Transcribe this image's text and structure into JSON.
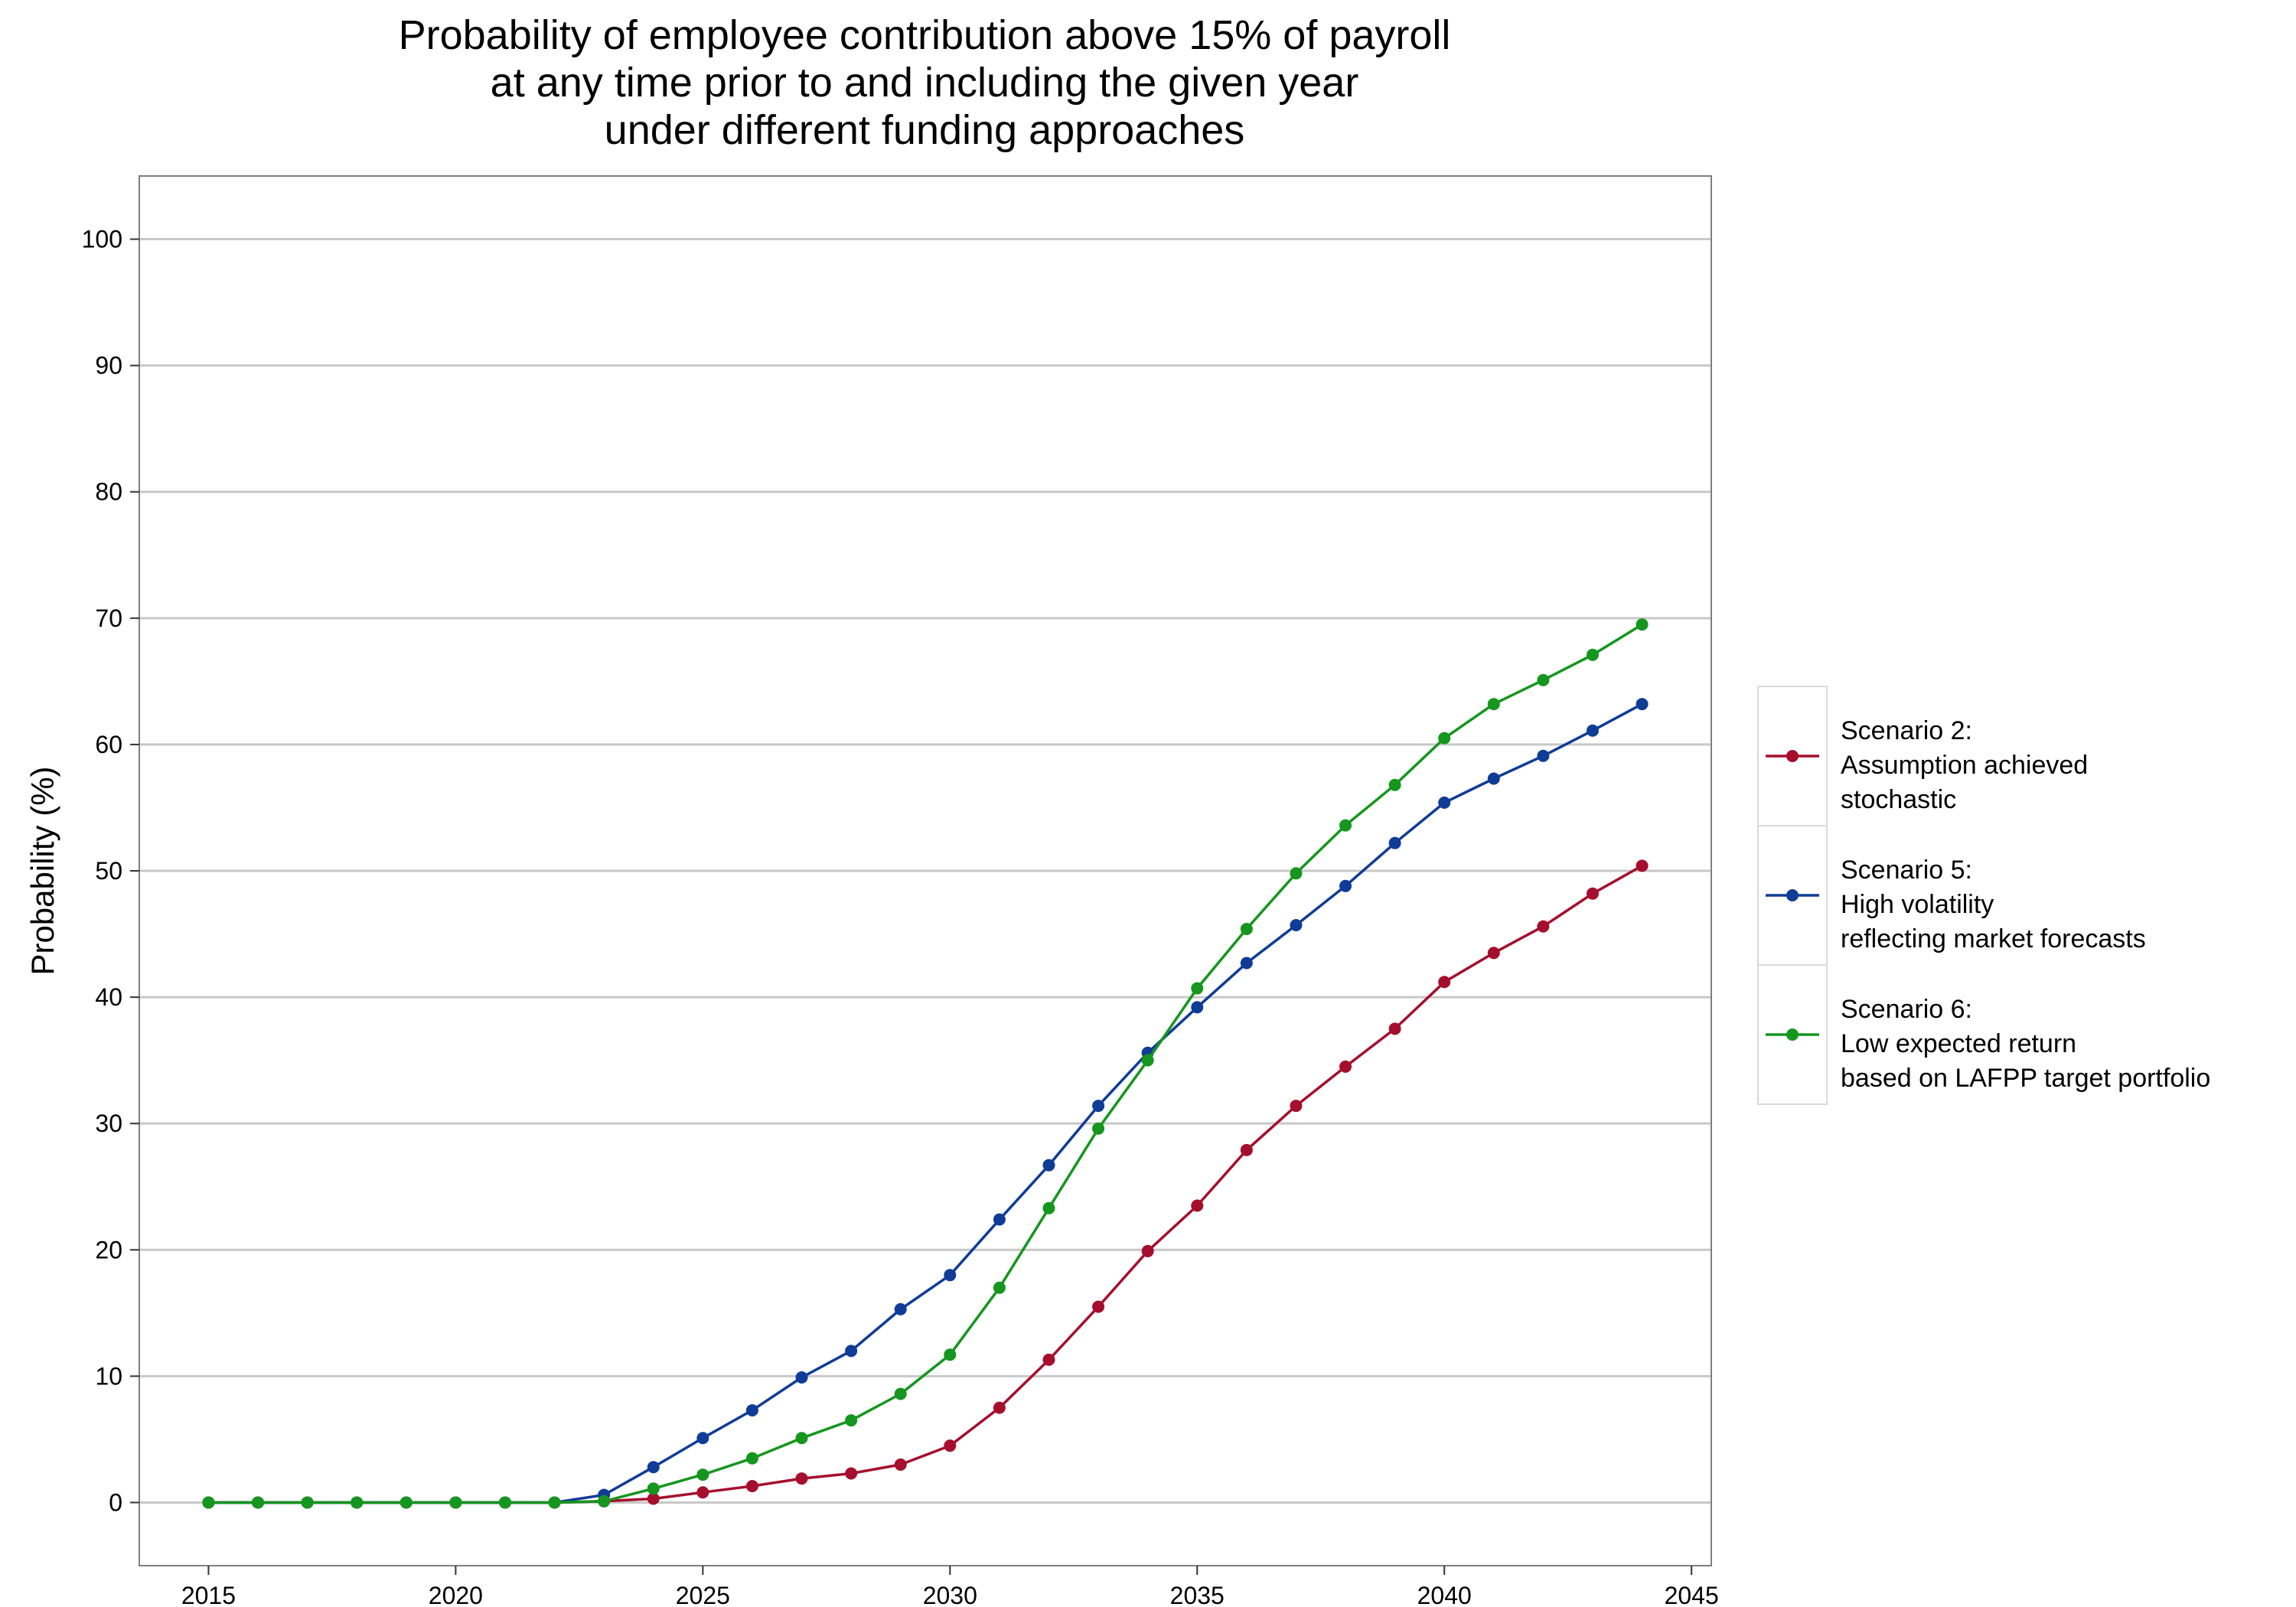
{
  "chart_data": {
    "type": "line",
    "title": [
      "Probability of employee contribution above 15% of payroll",
      "at any time prior to and including the given year",
      "under different funding approaches"
    ],
    "xlabel": "",
    "ylabel": "Probability (%)",
    "xlim": [
      2013.6,
      2045.4
    ],
    "ylim": [
      -5,
      105
    ],
    "xticks": [
      2015,
      2020,
      2025,
      2030,
      2035,
      2040,
      2045
    ],
    "yticks": [
      0,
      10,
      20,
      30,
      40,
      50,
      60,
      70,
      80,
      90,
      100
    ],
    "grid": "horizontal",
    "legend_position": "right",
    "x": [
      2015,
      2016,
      2017,
      2018,
      2019,
      2020,
      2021,
      2022,
      2023,
      2024,
      2025,
      2026,
      2027,
      2028,
      2029,
      2030,
      2031,
      2032,
      2033,
      2034,
      2035,
      2036,
      2037,
      2038,
      2039,
      2040,
      2041,
      2042,
      2043,
      2044
    ],
    "series": [
      {
        "name": [
          "Scenario 2:",
          "Assumption achieved",
          "stochastic"
        ],
        "color": "#a50f2d",
        "values": [
          0,
          0,
          0,
          0,
          0,
          0,
          0,
          0,
          0.1,
          0.3,
          0.8,
          1.3,
          1.9,
          2.3,
          3.0,
          4.5,
          7.5,
          11.3,
          15.5,
          19.9,
          23.5,
          27.9,
          31.4,
          34.5,
          37.5,
          41.2,
          43.5,
          45.6,
          48.2,
          50.4
        ]
      },
      {
        "name": [
          "Scenario 5:",
          "High volatility",
          "reflecting market forecasts"
        ],
        "color": "#0f3c96",
        "values": [
          0,
          0,
          0,
          0,
          0,
          0,
          0,
          0,
          0.6,
          2.8,
          5.1,
          7.3,
          9.9,
          12.0,
          15.3,
          18.0,
          22.4,
          26.7,
          31.4,
          35.6,
          39.2,
          42.7,
          45.7,
          48.8,
          52.2,
          55.4,
          57.3,
          59.1,
          61.1,
          63.2
        ]
      },
      {
        "name": [
          "Scenario 6:",
          "Low expected return",
          "based on LAFPP target portfolio"
        ],
        "color": "#15961e",
        "values": [
          0,
          0,
          0,
          0,
          0,
          0,
          0,
          0,
          0.1,
          1.1,
          2.2,
          3.5,
          5.1,
          6.5,
          8.6,
          11.7,
          17.0,
          23.3,
          29.6,
          35.0,
          40.7,
          45.4,
          49.8,
          53.6,
          56.8,
          60.5,
          63.2,
          65.1,
          67.1,
          69.5
        ]
      }
    ]
  }
}
